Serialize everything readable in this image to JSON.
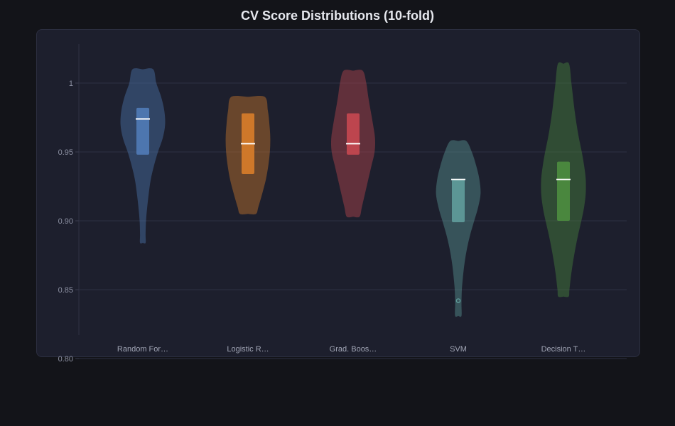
{
  "chart_data": {
    "type": "violin",
    "title": "CV Score Distributions (10-fold)",
    "xlabel": "",
    "ylabel": "",
    "ylim": [
      0.815,
      1.03
    ],
    "yticks": [
      {
        "value": 1.0,
        "label": "1"
      },
      {
        "value": 0.95,
        "label": "0.95"
      },
      {
        "value": 0.9,
        "label": "0.90"
      },
      {
        "value": 0.85,
        "label": "0.85"
      },
      {
        "value": 0.8,
        "label": "0.80"
      }
    ],
    "grid": true,
    "series": [
      {
        "category": "Random For…",
        "color": "#4f79b3",
        "median": 0.974,
        "q1": 0.948,
        "q3": 0.982,
        "outliers": [],
        "density": [
          [
            1.01,
            0.26
          ],
          [
            1.0,
            0.34
          ],
          [
            0.99,
            0.46
          ],
          [
            0.98,
            0.54
          ],
          [
            0.97,
            0.56
          ],
          [
            0.96,
            0.5
          ],
          [
            0.95,
            0.38
          ],
          [
            0.94,
            0.28
          ],
          [
            0.93,
            0.2
          ],
          [
            0.92,
            0.15
          ],
          [
            0.91,
            0.11
          ],
          [
            0.9,
            0.08
          ],
          [
            0.89,
            0.07
          ],
          [
            0.884,
            0.07
          ]
        ]
      },
      {
        "category": "Logistic R…",
        "color": "#d47b2a",
        "median": 0.956,
        "q1": 0.934,
        "q3": 0.978,
        "outliers": [],
        "density": [
          [
            0.99,
            0.42
          ],
          [
            0.98,
            0.5
          ],
          [
            0.97,
            0.54
          ],
          [
            0.96,
            0.56
          ],
          [
            0.95,
            0.55
          ],
          [
            0.94,
            0.51
          ],
          [
            0.93,
            0.45
          ],
          [
            0.92,
            0.36
          ],
          [
            0.91,
            0.26
          ],
          [
            0.905,
            0.2
          ]
        ]
      },
      {
        "category": "Grad. Boos…",
        "color": "#c2474f",
        "median": 0.956,
        "q1": 0.948,
        "q3": 0.978,
        "outliers": [],
        "density": [
          [
            1.009,
            0.24
          ],
          [
            1.0,
            0.33
          ],
          [
            0.99,
            0.38
          ],
          [
            0.98,
            0.44
          ],
          [
            0.97,
            0.5
          ],
          [
            0.96,
            0.55
          ],
          [
            0.95,
            0.54
          ],
          [
            0.94,
            0.46
          ],
          [
            0.93,
            0.38
          ],
          [
            0.92,
            0.3
          ],
          [
            0.91,
            0.22
          ],
          [
            0.903,
            0.16
          ]
        ]
      },
      {
        "category": "SVM",
        "color": "#5e9a99",
        "median": 0.93,
        "q1": 0.899,
        "q3": 0.93,
        "outliers": [
          0.842
        ],
        "density": [
          [
            0.958,
            0.2
          ],
          [
            0.95,
            0.34
          ],
          [
            0.94,
            0.45
          ],
          [
            0.93,
            0.53
          ],
          [
            0.92,
            0.56
          ],
          [
            0.91,
            0.5
          ],
          [
            0.9,
            0.4
          ],
          [
            0.89,
            0.3
          ],
          [
            0.88,
            0.22
          ],
          [
            0.87,
            0.16
          ],
          [
            0.86,
            0.12
          ],
          [
            0.85,
            0.09
          ],
          [
            0.84,
            0.08
          ],
          [
            0.831,
            0.08
          ]
        ]
      },
      {
        "category": "Decision T…",
        "color": "#4c8a3f",
        "median": 0.93,
        "q1": 0.9,
        "q3": 0.943,
        "outliers": [],
        "density": [
          [
            1.014,
            0.14
          ],
          [
            1.0,
            0.2
          ],
          [
            0.99,
            0.24
          ],
          [
            0.98,
            0.28
          ],
          [
            0.97,
            0.33
          ],
          [
            0.96,
            0.39
          ],
          [
            0.95,
            0.46
          ],
          [
            0.94,
            0.52
          ],
          [
            0.93,
            0.56
          ],
          [
            0.92,
            0.56
          ],
          [
            0.91,
            0.52
          ],
          [
            0.9,
            0.45
          ],
          [
            0.89,
            0.37
          ],
          [
            0.88,
            0.3
          ],
          [
            0.87,
            0.24
          ],
          [
            0.86,
            0.19
          ],
          [
            0.85,
            0.15
          ],
          [
            0.845,
            0.13
          ]
        ]
      }
    ]
  }
}
